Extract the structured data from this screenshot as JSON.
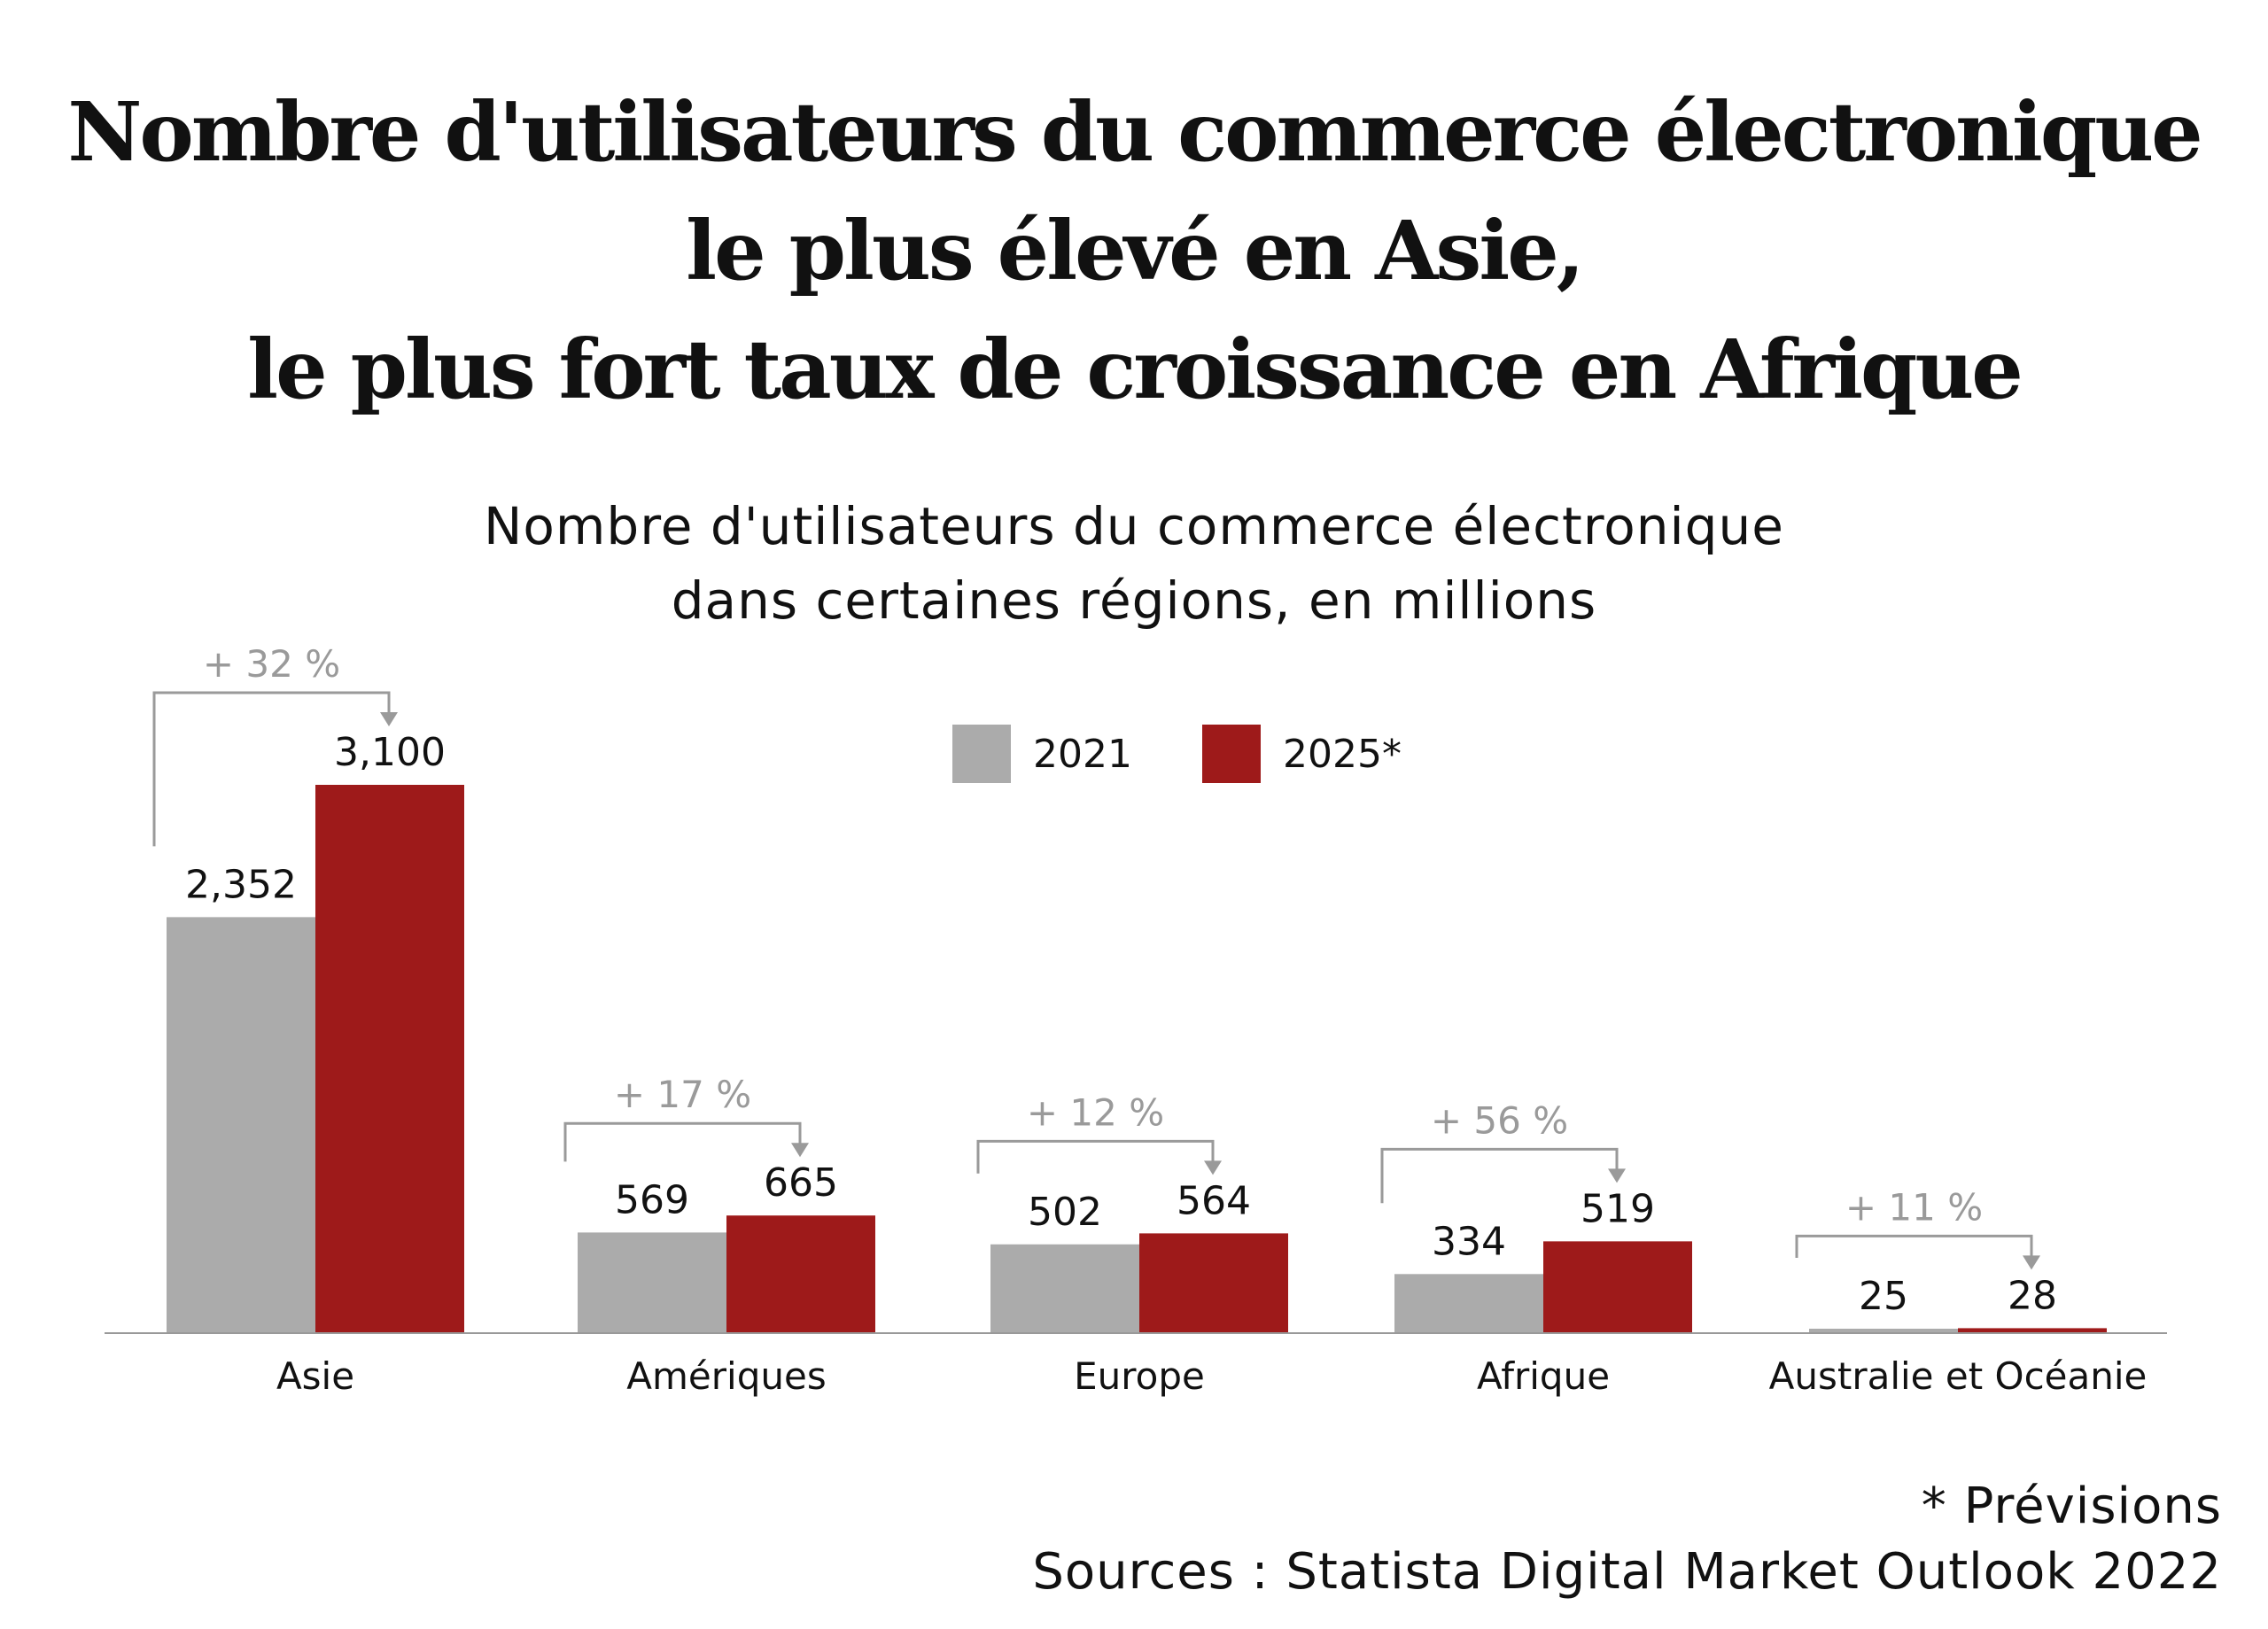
{
  "headline": {
    "line1": "Nombre d'utilisateurs du commerce électronique",
    "line2": "le plus élevé en Asie,",
    "line3": "le plus fort taux de croissance en Afrique"
  },
  "footer": {
    "note": "* Prévisions",
    "sources": "Sources : Statista Digital Market Outlook 2022"
  },
  "colors": {
    "series_2021": "#ababab",
    "series_2025": "#9e1a1a",
    "growth": "#9a9a9a",
    "axis": "#999999"
  },
  "chart_data": {
    "type": "bar",
    "title": "Nombre d'utilisateurs du commerce électronique",
    "subtitle": "dans certaines régions, en millions",
    "xlabel": "",
    "ylabel": "",
    "ylim": [
      0,
      3100
    ],
    "grid": false,
    "legend_position": "top-center",
    "categories": [
      "Asie",
      "Amériques",
      "Europe",
      "Afrique",
      "Australie et Océanie"
    ],
    "series": [
      {
        "name": "2021",
        "values": [
          2352,
          569,
          502,
          334,
          25
        ],
        "labels": [
          "2,352",
          "569",
          "502",
          "334",
          "25"
        ]
      },
      {
        "name": "2025*",
        "values": [
          3100,
          665,
          564,
          519,
          28
        ],
        "labels": [
          "3,100",
          "665",
          "564",
          "519",
          "28"
        ]
      }
    ],
    "annotations": [
      "+ 32 %",
      "+ 17 %",
      "+ 12 %",
      "+ 56 %",
      "+ 11 %"
    ]
  }
}
